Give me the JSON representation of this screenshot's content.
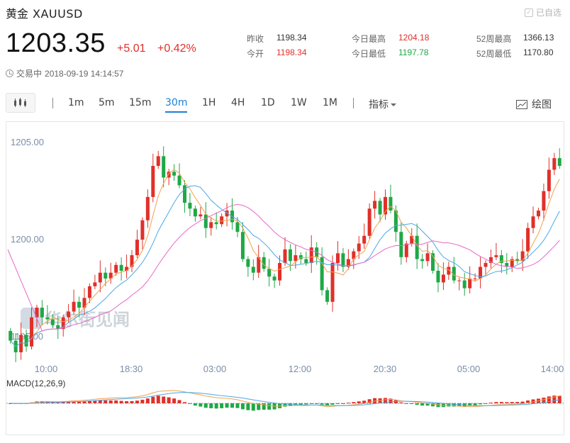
{
  "header": {
    "name": "黄金",
    "symbol": "XAUUSD",
    "added_label": "已自选"
  },
  "quote": {
    "price": "1203.35",
    "change": "+5.01",
    "change_pct": "+0.42%"
  },
  "stats": {
    "prev_close_label": "昨收",
    "prev_close": "1198.34",
    "open_label": "今开",
    "open": "1198.34",
    "high_label": "今日最高",
    "high": "1204.18",
    "low_label": "今日最低",
    "low": "1197.78",
    "high52_label": "52周最高",
    "high52": "1366.13",
    "low52_label": "52周最低",
    "low52": "1170.80"
  },
  "status": {
    "state": "交易中",
    "datetime": "2018-09-19 14:14:57"
  },
  "toolbar": {
    "timeframes": [
      "1m",
      "5m",
      "15m",
      "30m",
      "1H",
      "4H",
      "1D",
      "1W",
      "1M"
    ],
    "active": "30m",
    "indicator_label": "指标",
    "draw_label": "绘图"
  },
  "colors": {
    "up": "#e0302a",
    "down": "#1fa846",
    "accent": "#1b7fd6",
    "ma5": "#f5a04c",
    "ma10": "#4aa8e6",
    "ma20": "#e868c8"
  },
  "watermark": "华尔街见闻",
  "chart_data": {
    "type": "candlestick",
    "y_ticks": [
      "1205.00",
      "1200.00",
      "1195.00"
    ],
    "y_ticks_values": [
      1205,
      1200,
      1195
    ],
    "x_ticks": [
      "10:00",
      "18:30",
      "03:00",
      "12:00",
      "20:30",
      "05:00",
      "14:00"
    ],
    "macd_label": "MACD(12,26,9)",
    "series": [
      {
        "name": "K",
        "ohlc_path": [
          1194.8,
          1194.2,
          1195.1,
          1194.5,
          1196.0,
          1196.5,
          1196.0,
          1195.9,
          1195.6,
          1195.4,
          1196.0,
          1196.3,
          1196.8,
          1196.5,
          1197.0,
          1197.6,
          1197.8,
          1198.3,
          1198.0,
          1198.3,
          1198.7,
          1198.4,
          1198.6,
          1199.2,
          1200.0,
          1201.0,
          1202.2,
          1203.8,
          1204.3,
          1203.2,
          1203.5,
          1203.3,
          1202.8,
          1201.9,
          1201.6,
          1201.2,
          1201.3,
          1200.6,
          1200.9,
          1200.8,
          1201.2,
          1201.5,
          1200.9,
          1200.4,
          1199.0,
          1198.6,
          1198.3,
          1199.1,
          1198.5,
          1198.1,
          1197.9,
          1198.8,
          1199.5,
          1198.9,
          1199.2,
          1199.0,
          1198.8,
          1199.6,
          1199.1,
          1197.4,
          1196.8,
          1198.8,
          1199.3,
          1198.6,
          1199.0,
          1199.4,
          1199.8,
          1200.2,
          1201.6,
          1202.0,
          1201.3,
          1202.2,
          1201.5,
          1200.4,
          1199.1,
          1199.8,
          1200.2,
          1199.0,
          1198.9,
          1199.3,
          1198.4,
          1197.8,
          1198.2,
          1198.6,
          1197.9,
          1197.9,
          1197.5,
          1198.0,
          1198.0,
          1198.6,
          1198.8,
          1199.1,
          1199.2,
          1198.8,
          1198.6,
          1199.0,
          1198.9,
          1199.4,
          1200.6,
          1201.2,
          1201.5,
          1202.5,
          1203.6,
          1204.2,
          1203.8
        ]
      }
    ]
  }
}
